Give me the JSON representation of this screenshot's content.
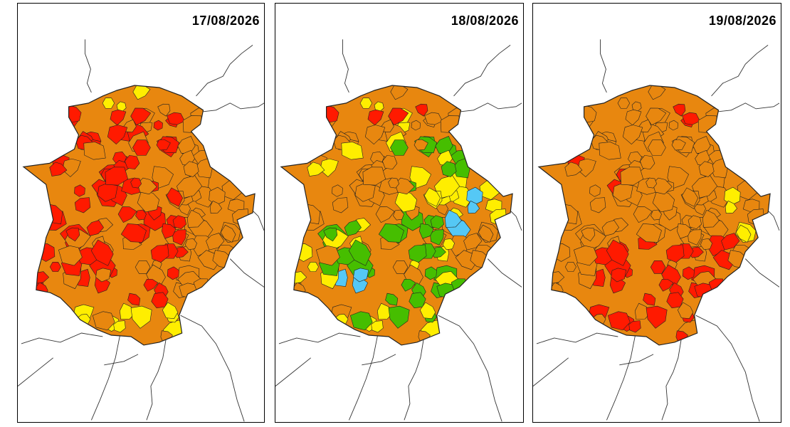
{
  "maps": [
    {
      "date": "17/08/2026",
      "scenario": "day1"
    },
    {
      "date": "18/08/2026",
      "scenario": "day2"
    },
    {
      "date": "19/08/2026",
      "scenario": "day3"
    }
  ],
  "colors": {
    "red": "#ff1a00",
    "orange": "#e8870f",
    "yellow": "#ffee00",
    "green": "#46be00",
    "blue": "#55c8f5",
    "border": "#222222",
    "province_line": "#333333"
  }
}
